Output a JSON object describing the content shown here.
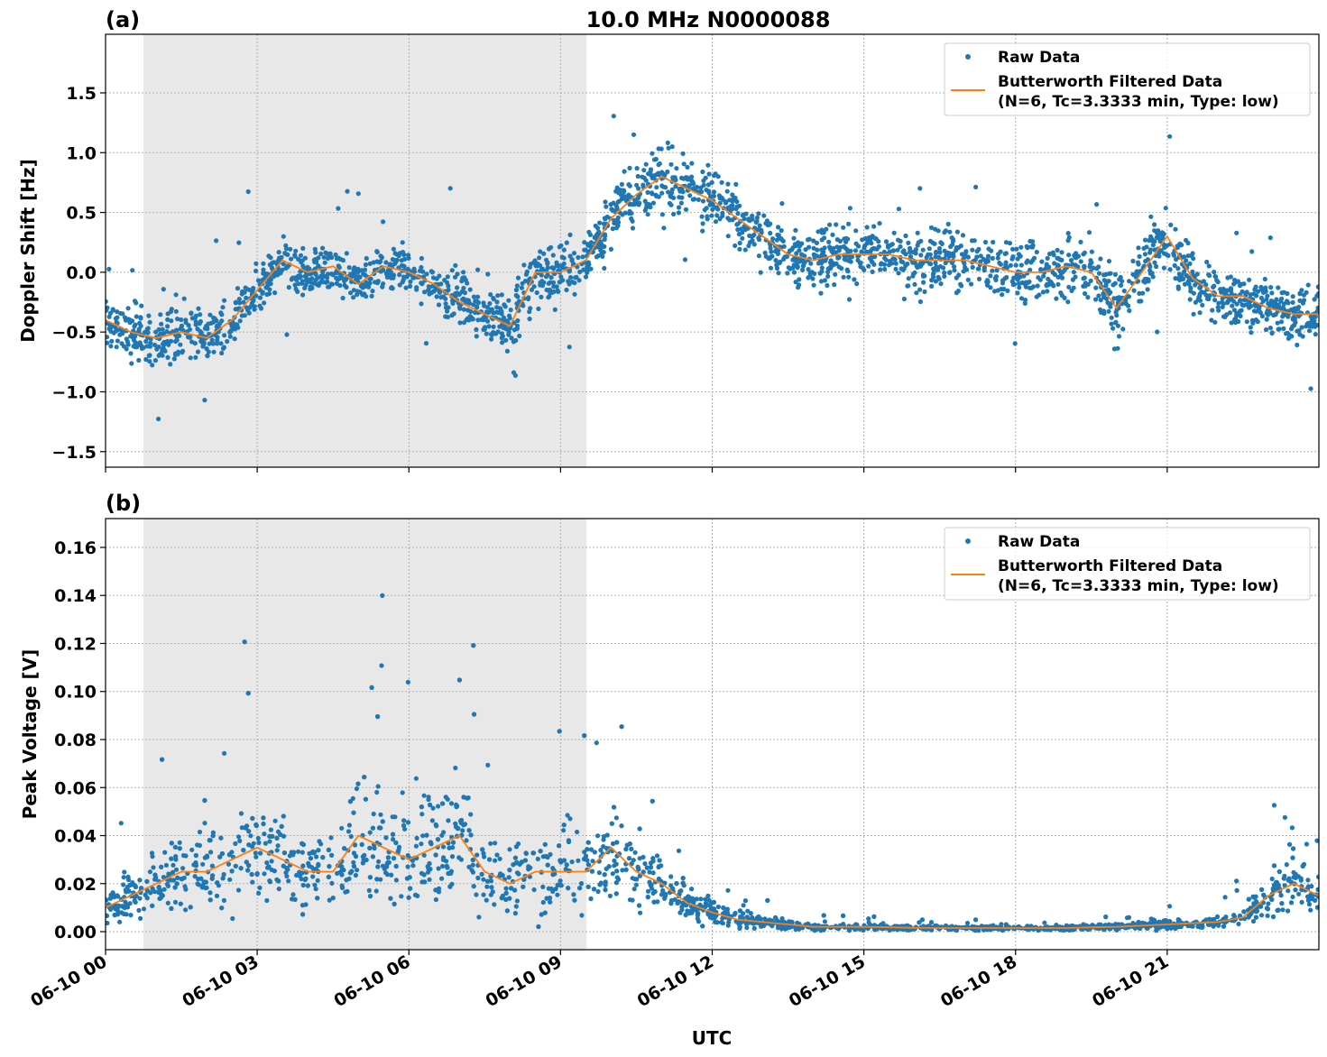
{
  "chart_data": [
    {
      "type": "scatter",
      "panel_label": "(a)",
      "title": "10.0 MHz N0000088",
      "xlabel": "",
      "ylabel": "Doppler Shift [Hz]",
      "xlim_hours": [
        0,
        24
      ],
      "ylim": [
        -1.63,
        1.99
      ],
      "yticks": [
        -1.5,
        -1.0,
        -0.5,
        0.0,
        0.5,
        1.0,
        1.5
      ],
      "ytick_labels": [
        "−1.5",
        "−1.0",
        "−0.5",
        "0.0",
        "0.5",
        "1.0",
        "1.5"
      ],
      "shaded_region_utc": [
        "06-10 00:45",
        "06-10 09:31"
      ],
      "grid": true,
      "legend": {
        "placement": "top-right",
        "entries": [
          "Raw Data",
          "Butterworth Filtered Data\n(N=6, Tc=3.3333 min, Type: low)"
        ],
        "line1": "Butterworth Filtered Data",
        "line2": "(N=6, Tc=3.3333 min, Type: low)"
      },
      "series": [
        {
          "name": "Raw Data",
          "kind": "scatter",
          "color": "#1f77b4",
          "spread": [
            0.25,
            0.3,
            0.35,
            0.3,
            0.3,
            0.3,
            0.3,
            0.3,
            0.25,
            0.25,
            0.25,
            0.25,
            0.25,
            0.25,
            0.3,
            0.3,
            0.35,
            0.3,
            0.3,
            0.25,
            0.3,
            0.35,
            0.4,
            0.35,
            0.35,
            0.3,
            0.3,
            0.3,
            0.3,
            0.35,
            0.35,
            0.35,
            0.35,
            0.35,
            0.35,
            0.35,
            0.35,
            0.35,
            0.35,
            0.35,
            0.35,
            0.35,
            0.4,
            0.3,
            0.3,
            0.3,
            0.3,
            0.3,
            0.3
          ]
        },
        {
          "name": "Butterworth Filtered Data (N=6, Tc=3.3333 min, Type: low)",
          "kind": "line",
          "color": "#ff7f0e",
          "x_hours": [
            0,
            0.5,
            1,
            1.5,
            2,
            2.5,
            3,
            3.5,
            4,
            4.5,
            5,
            5.5,
            6,
            6.5,
            7,
            7.5,
            8,
            8.5,
            9,
            9.5,
            10,
            10.5,
            11,
            11.5,
            12,
            12.5,
            13,
            13.5,
            14,
            14.5,
            15,
            15.5,
            16,
            16.5,
            17,
            17.5,
            18,
            18.5,
            19,
            19.5,
            20,
            20.5,
            21,
            21.5,
            22,
            22.5,
            23,
            23.5,
            24
          ],
          "values": [
            -0.4,
            -0.5,
            -0.55,
            -0.5,
            -0.55,
            -0.4,
            -0.15,
            0.1,
            0.0,
            0.05,
            -0.1,
            0.05,
            0.0,
            -0.1,
            -0.25,
            -0.35,
            -0.45,
            0.0,
            0.0,
            0.1,
            0.45,
            0.65,
            0.8,
            0.7,
            0.6,
            0.45,
            0.3,
            0.15,
            0.1,
            0.15,
            0.15,
            0.15,
            0.1,
            0.1,
            0.1,
            0.05,
            0.0,
            0.0,
            0.05,
            0.0,
            -0.3,
            0.0,
            0.3,
            -0.05,
            -0.2,
            -0.2,
            -0.3,
            -0.35,
            -0.35
          ]
        }
      ]
    },
    {
      "type": "scatter",
      "panel_label": "(b)",
      "xlabel": "UTC",
      "ylabel": "Peak Voltage [V]",
      "xlim_hours": [
        0,
        24
      ],
      "ylim": [
        -0.0075,
        0.172
      ],
      "yticks": [
        0.0,
        0.02,
        0.04,
        0.06,
        0.08,
        0.1,
        0.12,
        0.14,
        0.16
      ],
      "ytick_labels": [
        "0.00",
        "0.02",
        "0.04",
        "0.06",
        "0.08",
        "0.10",
        "0.12",
        "0.14",
        "0.16"
      ],
      "xticks_hours": [
        0,
        3,
        6,
        9,
        12,
        15,
        18,
        21
      ],
      "xtick_labels": [
        "06-10 00",
        "06-10 03",
        "06-10 06",
        "06-10 09",
        "06-10 12",
        "06-10 15",
        "06-10 18",
        "06-10 21"
      ],
      "shaded_region_utc": [
        "06-10 00:45",
        "06-10 09:31"
      ],
      "grid": true,
      "legend": {
        "placement": "top-right",
        "line1": "Butterworth Filtered Data",
        "line2": "(N=6, Tc=3.3333 min, Type: low)",
        "raw": "Raw Data"
      },
      "series": [
        {
          "name": "Raw Data",
          "kind": "scatter",
          "color": "#1f77b4"
        },
        {
          "name": "Butterworth Filtered Data (N=6, Tc=3.3333 min, Type: low)",
          "kind": "line",
          "color": "#ff7f0e",
          "x_hours": [
            0,
            0.5,
            1,
            1.5,
            2,
            2.5,
            3,
            3.5,
            4,
            4.5,
            5,
            5.5,
            6,
            6.5,
            7,
            7.5,
            8,
            8.5,
            9,
            9.5,
            10,
            10.5,
            11,
            11.5,
            12,
            12.5,
            13,
            13.5,
            14,
            14.5,
            15,
            15.5,
            16,
            16.5,
            17,
            17.5,
            18,
            18.5,
            19,
            19.5,
            20,
            20.5,
            21,
            21.5,
            22,
            22.5,
            23,
            23.5,
            24
          ],
          "values": [
            0.01,
            0.015,
            0.02,
            0.025,
            0.025,
            0.03,
            0.035,
            0.03,
            0.025,
            0.025,
            0.04,
            0.035,
            0.03,
            0.035,
            0.04,
            0.025,
            0.02,
            0.025,
            0.025,
            0.025,
            0.035,
            0.025,
            0.02,
            0.012,
            0.008,
            0.005,
            0.004,
            0.003,
            0.002,
            0.002,
            0.002,
            0.0018,
            0.0016,
            0.0015,
            0.0015,
            0.0015,
            0.0015,
            0.0015,
            0.0015,
            0.0018,
            0.002,
            0.0025,
            0.003,
            0.0035,
            0.004,
            0.006,
            0.015,
            0.02,
            0.015
          ]
        }
      ]
    }
  ]
}
